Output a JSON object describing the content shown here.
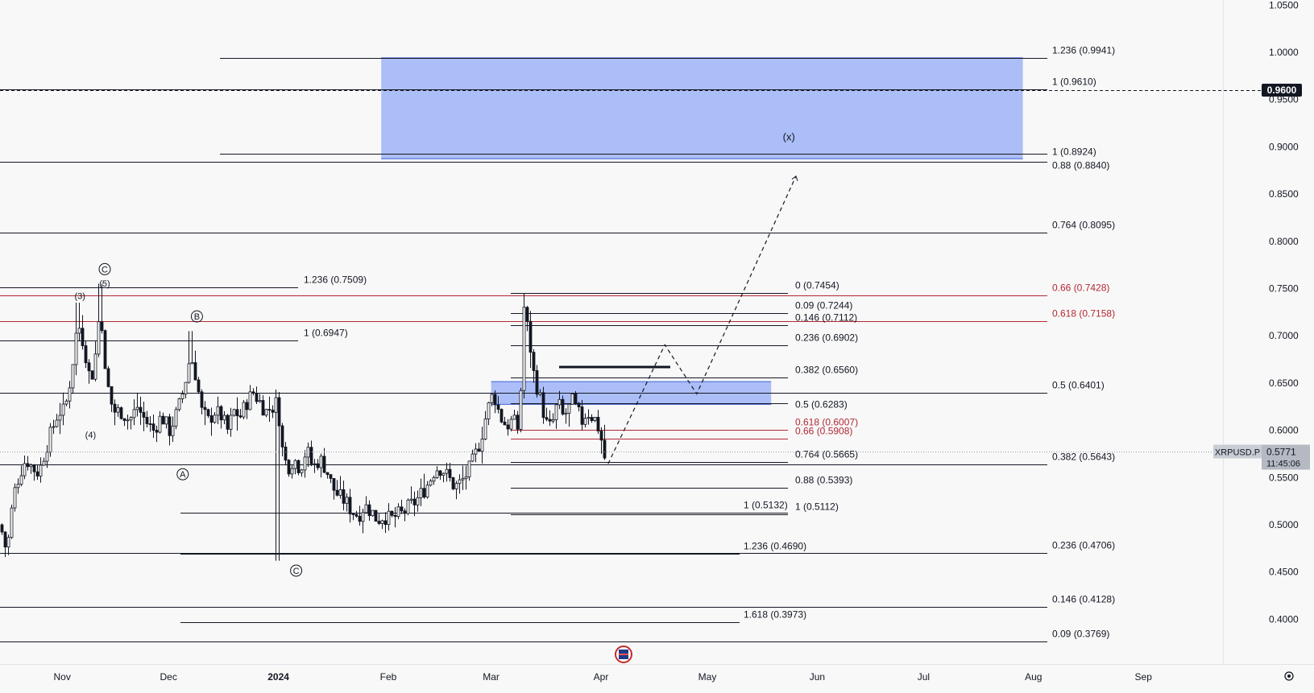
{
  "chart_data": {
    "type": "candlestick",
    "symbol": "XRPUSD.P",
    "price_axis": {
      "ticks": [
        "1.0500",
        "1.0000",
        "0.9500",
        "0.9000",
        "0.8500",
        "0.8000",
        "0.7500",
        "0.7000",
        "0.6500",
        "0.6000",
        "0.5500",
        "0.5000",
        "0.4500",
        "0.4000"
      ],
      "min": 0.38,
      "max": 1.05
    },
    "time_axis": {
      "ticks": [
        "Nov",
        "Dec",
        "2024",
        "Feb",
        "Mar",
        "Apr",
        "May",
        "Jun",
        "Jul",
        "Aug",
        "Sep"
      ],
      "dates": [
        "2023-11-01",
        "2023-12-01",
        "2024-01-01",
        "2024-02-01",
        "2024-03-01",
        "2024-04-01",
        "2024-05-01",
        "2024-06-01",
        "2024-07-01",
        "2024-08-01",
        "2024-09-01"
      ]
    },
    "current_price": {
      "label": "0.5771",
      "countdown": "11:45:06",
      "value": 0.5771
    },
    "horizontal_price_label": {
      "label": "0.9600",
      "value": 0.96
    },
    "target_zone": {
      "price_top": 0.9941,
      "price_bottom": 0.8874,
      "date_start": "2024-01-30",
      "date_end": "2024-07-29"
    },
    "support_zone": {
      "price_top": 0.6515,
      "price_bottom": 0.6275,
      "date_start": "2024-03-01",
      "date_end": "2024-05-19"
    },
    "fib_levels": [
      {
        "label": "1.236 (0.9941)",
        "price": 0.9941,
        "color": "#131722"
      },
      {
        "label": "1 (0.9610)",
        "price": 0.961,
        "color": "#131722"
      },
      {
        "label": "1 (0.8924)",
        "price": 0.8924,
        "color": "#131722"
      },
      {
        "label": "0.88 (0.8840)",
        "price": 0.884,
        "color": "#131722"
      },
      {
        "label": "0.764 (0.8095)",
        "price": 0.8095,
        "color": "#131722"
      },
      {
        "label": "0.66 (0.7428)",
        "price": 0.7428,
        "color": "#b22833"
      },
      {
        "label": "0.618 (0.7158)",
        "price": 0.7158,
        "color": "#b22833"
      },
      {
        "label": "0.5 (0.6401)",
        "price": 0.6401,
        "color": "#131722"
      },
      {
        "label": "0.382 (0.5643)",
        "price": 0.5643,
        "color": "#131722"
      },
      {
        "label": "0.236 (0.4706)",
        "price": 0.4706,
        "color": "#131722"
      },
      {
        "label": "0.146 (0.4128)",
        "price": 0.4128,
        "color": "#131722"
      },
      {
        "label": "0.09 (0.3769)",
        "price": 0.3769,
        "color": "#131722"
      },
      {
        "label": "1.236 (0.7509)",
        "price": 0.7509,
        "color": "#131722"
      },
      {
        "label": "1 (0.6947)",
        "price": 0.6947,
        "color": "#131722"
      },
      {
        "label": "1 (0.5132)",
        "price": 0.5132,
        "color": "#131722"
      },
      {
        "label": "1.236 (0.4690)",
        "price": 0.469,
        "color": "#131722"
      },
      {
        "label": "1.618 (0.3973)",
        "price": 0.3973,
        "color": "#131722"
      },
      {
        "label": "0 (0.7454)",
        "price": 0.7454,
        "color": "#131722"
      },
      {
        "label": "0.09 (0.7244)",
        "price": 0.7244,
        "color": "#131722"
      },
      {
        "label": "0.146 (0.7112)",
        "price": 0.7112,
        "color": "#131722"
      },
      {
        "label": "0.236 (0.6902)",
        "price": 0.6902,
        "color": "#131722"
      },
      {
        "label": "0.382 (0.6560)",
        "price": 0.656,
        "color": "#131722"
      },
      {
        "label": "0.5 (0.6283)",
        "price": 0.6283,
        "color": "#131722"
      },
      {
        "label": "0.618 (0.6007)",
        "price": 0.6007,
        "color": "#b22833"
      },
      {
        "label": "0.66 (0.5908)",
        "price": 0.5908,
        "color": "#b22833"
      },
      {
        "label": "0.764 (0.5665)",
        "price": 0.5665,
        "color": "#131722"
      },
      {
        "label": "0.88 (0.5393)",
        "price": 0.5393,
        "color": "#131722"
      },
      {
        "label": "1 (0.5112)",
        "price": 0.5112,
        "color": "#131722"
      }
    ],
    "wave_labels": [
      {
        "label": "C",
        "circled": true,
        "date": "2023-11-13",
        "price": 0.7705
      },
      {
        "label": "(5)",
        "circled": false,
        "date": "2023-11-13",
        "price": 0.7555
      },
      {
        "label": "(3)",
        "circled": false,
        "date": "2023-11-06",
        "price": 0.7425
      },
      {
        "label": "(4)",
        "circled": false,
        "date": "2023-11-09",
        "price": 0.5955
      },
      {
        "label": "B",
        "circled": true,
        "date": "2023-12-09",
        "price": 0.7205
      },
      {
        "label": "A",
        "circled": true,
        "date": "2023-12-05",
        "price": 0.5535
      },
      {
        "label": "C",
        "circled": true,
        "date": "2024-01-06",
        "price": 0.4515
      },
      {
        "label": "(x)",
        "circled": false,
        "date": "2024-05-24",
        "price": 0.91
      }
    ],
    "projection_path": [
      {
        "date": "2024-04-03",
        "price": 0.5645
      },
      {
        "date": "2024-04-19",
        "price": 0.6905
      },
      {
        "date": "2024-04-28",
        "price": 0.6385
      },
      {
        "date": "2024-05-26",
        "price": 0.869
      }
    ],
    "colors": {
      "up": "#131722",
      "down": "#131722",
      "zone_fill": "#a8bbf7",
      "red_level": "#b22833",
      "dark_level": "#131722",
      "axis_text": "#131722"
    }
  }
}
